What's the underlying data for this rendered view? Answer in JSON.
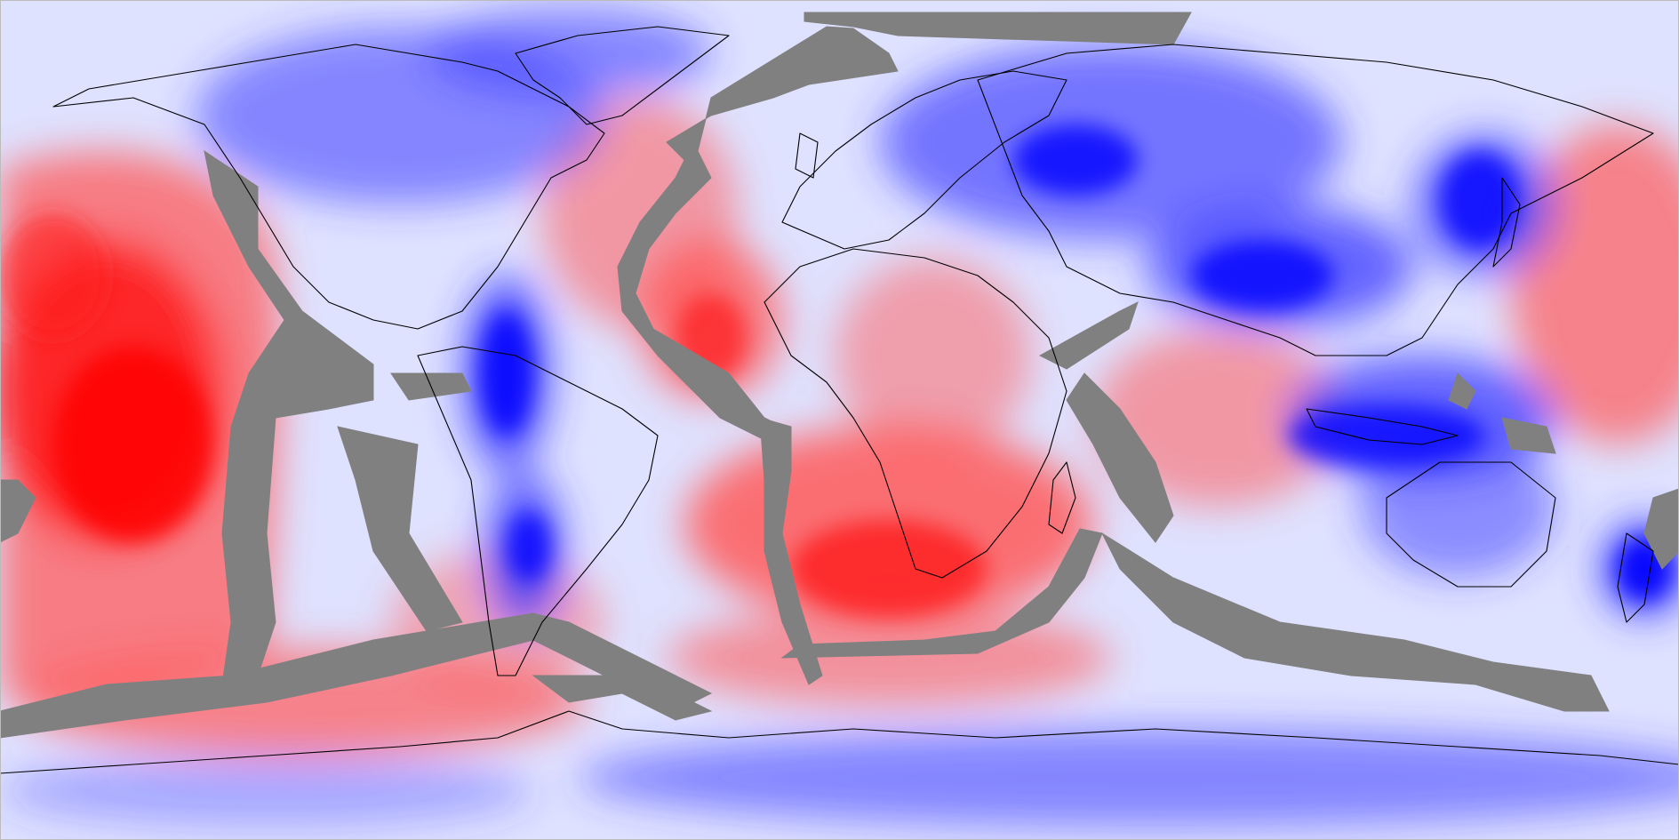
{
  "map": {
    "projection": "equirectangular",
    "colormap": {
      "positive": "#ff0000",
      "neutral": "#ffffff",
      "negative": "#0000ff",
      "masked": "#808080",
      "coastline": "#000000"
    },
    "annotations": []
  }
}
